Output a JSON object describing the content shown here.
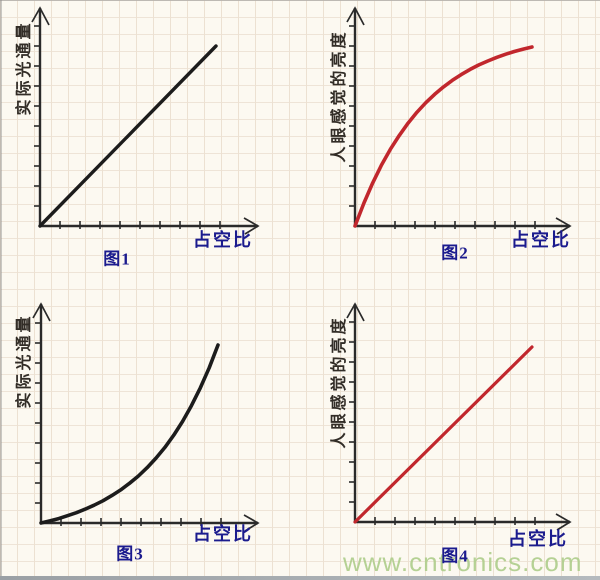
{
  "page": {
    "watermark": "www.cntronics.com",
    "background_color": "#fcf9f1",
    "grid_style": "graph-paper"
  },
  "colors": {
    "axis": "#2a2a2a",
    "navy_label": "#1b1b8e",
    "black_curve": "#1c1c1c",
    "red_curve": "#c1272d",
    "watermark_green": "#afcd8c"
  },
  "chart_data": [
    {
      "type": "line",
      "caption": "图1",
      "xlabel": "占空比",
      "ylabel": "实际光通量",
      "shape": "linear",
      "color": "#1c1c1c",
      "x_range": [
        0,
        1
      ],
      "y_range": [
        0,
        1
      ],
      "x": [
        0,
        1
      ],
      "y": [
        0,
        1
      ],
      "x_ticks": 9,
      "y_ticks": 10,
      "tick_labels": "none",
      "grid": false
    },
    {
      "type": "line",
      "caption": "图2",
      "xlabel": "占空比",
      "ylabel": "人眼感觉的亮度",
      "shape": "saturating",
      "color": "#c1272d",
      "x_range": [
        0,
        1
      ],
      "y_range": [
        0,
        1
      ],
      "x": [
        0,
        0.05,
        0.1,
        0.15,
        0.2,
        0.25,
        0.3,
        0.35,
        0.4,
        0.45,
        0.5,
        0.55,
        0.6,
        0.65,
        0.7,
        0.75,
        0.8,
        0.85,
        0.9,
        0.95,
        1
      ],
      "y": [
        0,
        0.128,
        0.241,
        0.341,
        0.429,
        0.506,
        0.575,
        0.635,
        0.689,
        0.736,
        0.777,
        0.814,
        0.846,
        0.875,
        0.9,
        0.922,
        0.942,
        0.959,
        0.975,
        0.988,
        1
      ],
      "x_ticks": 9,
      "y_ticks": 10,
      "tick_labels": "none",
      "grid": false
    },
    {
      "type": "line",
      "caption": "图3",
      "xlabel": "占空比",
      "ylabel": "实际光通量",
      "shape": "exponential",
      "color": "#1c1c1c",
      "x_range": [
        0,
        1
      ],
      "y_range": [
        0,
        1
      ],
      "x": [
        0,
        0.05,
        0.1,
        0.15,
        0.2,
        0.25,
        0.3,
        0.35,
        0.4,
        0.45,
        0.5,
        0.55,
        0.6,
        0.65,
        0.7,
        0.75,
        0.8,
        0.85,
        0.9,
        0.95,
        1
      ],
      "y": [
        0,
        0.012,
        0.025,
        0.041,
        0.058,
        0.078,
        0.1,
        0.125,
        0.154,
        0.186,
        0.223,
        0.264,
        0.311,
        0.365,
        0.425,
        0.494,
        0.571,
        0.659,
        0.759,
        0.872,
        1
      ],
      "x_ticks": 9,
      "y_ticks": 10,
      "tick_labels": "none",
      "grid": false
    },
    {
      "type": "line",
      "caption": "图4",
      "xlabel": "占空比",
      "ylabel": "人眼感觉的亮度",
      "shape": "linear",
      "color": "#c1272d",
      "x_range": [
        0,
        1
      ],
      "y_range": [
        0,
        1
      ],
      "x": [
        0,
        1
      ],
      "y": [
        0,
        1
      ],
      "x_ticks": 9,
      "y_ticks": 10,
      "tick_labels": "none",
      "grid": false
    }
  ]
}
